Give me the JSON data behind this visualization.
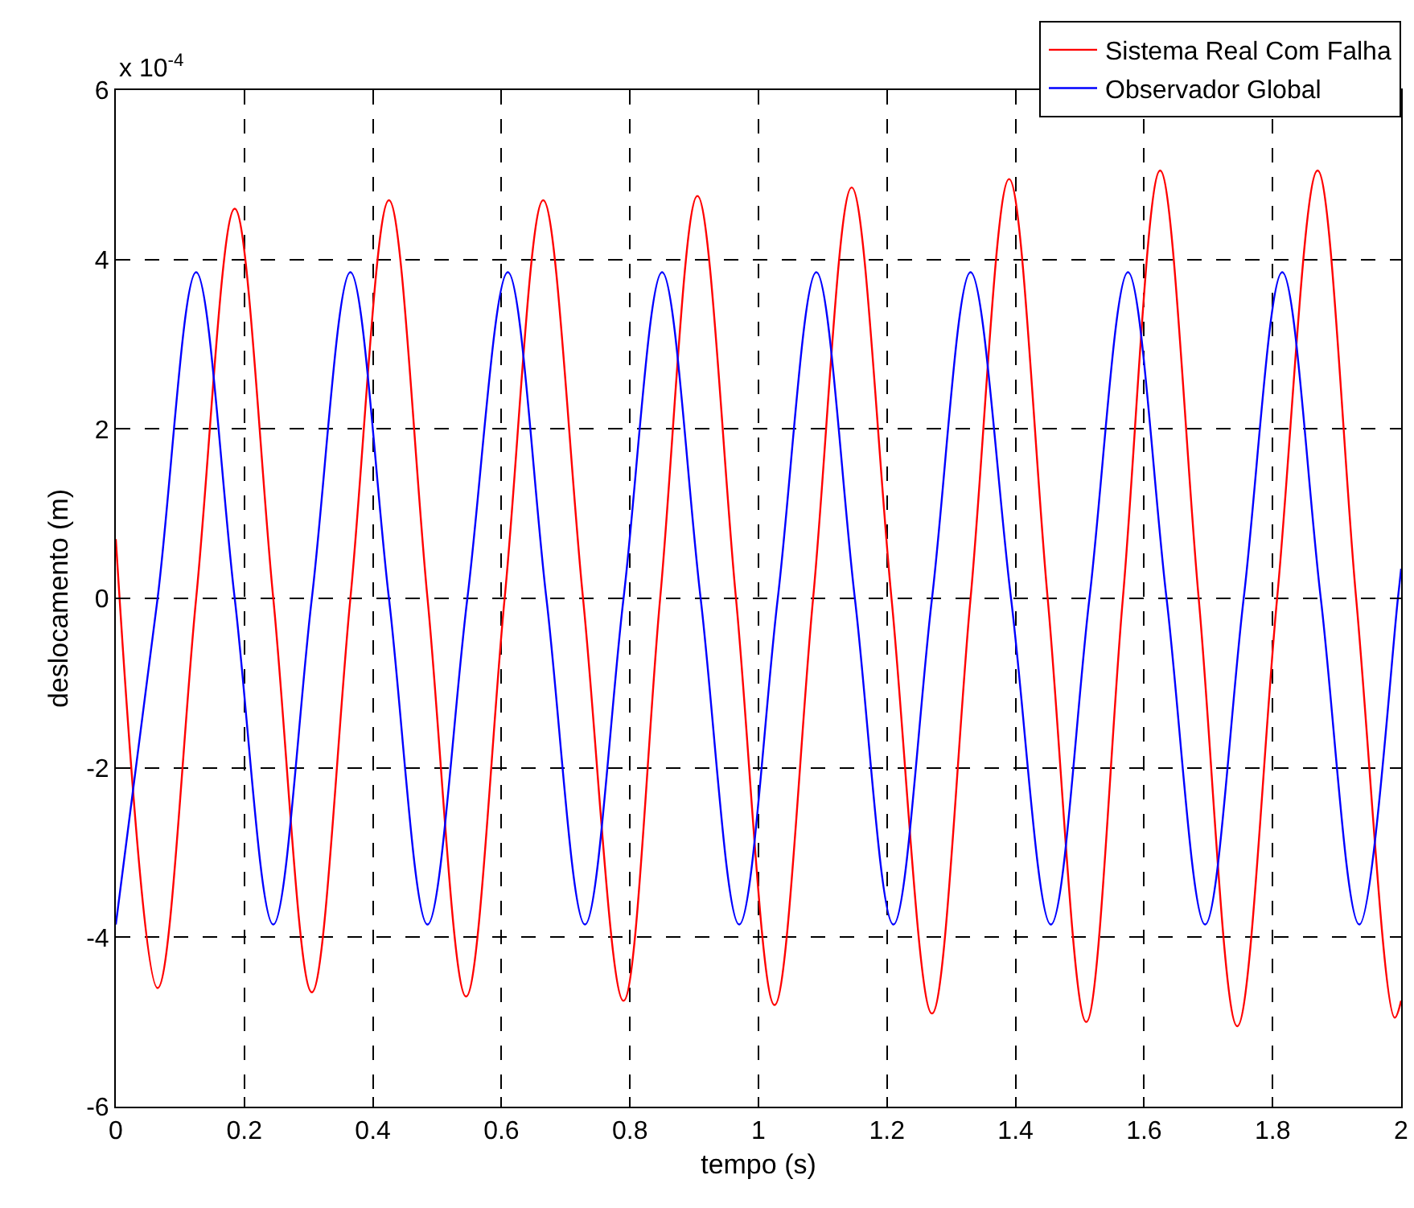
{
  "chart_data": {
    "type": "line",
    "xlabel": "tempo (s)",
    "ylabel": "deslocamento (m)",
    "annotations": [
      "x 10$^{-4}$"
    ],
    "xlim": [
      0,
      2
    ],
    "xticks": [
      0,
      0.2,
      0.4,
      0.6,
      0.8,
      1,
      1.2,
      1.4,
      1.6,
      1.8,
      2
    ],
    "ylim": [
      -6,
      6
    ],
    "yticks": [
      -6,
      -4,
      -2,
      0,
      2,
      4,
      6
    ],
    "grid": true,
    "legend": "top right",
    "marker": "none",
    "line_style": "solid",
    "series": [
      {
        "name": "Sistema Real Com Falha",
        "color": "#ff0000",
        "x": [
          0,
          0.065,
          0.125,
          0.185,
          0.245,
          0.305,
          0.365,
          0.425,
          0.485,
          0.545,
          0.605,
          0.665,
          0.727,
          0.79,
          0.847,
          0.905,
          0.965,
          1.025,
          1.085,
          1.145,
          1.207,
          1.27,
          1.33,
          1.39,
          1.45,
          1.51,
          1.567,
          1.625,
          1.685,
          1.745,
          1.807,
          1.87,
          1.93,
          1.99,
          2
        ],
        "values": [
          0.7,
          -4.6,
          0,
          4.6,
          0,
          -4.65,
          0,
          4.7,
          0,
          -4.7,
          0,
          4.7,
          0,
          -4.75,
          0,
          4.75,
          0,
          -4.8,
          0,
          4.85,
          0,
          -4.9,
          0,
          4.95,
          0,
          -5,
          0,
          5.05,
          0,
          -5.05,
          0,
          5.05,
          0,
          -4.95,
          -4.75
        ]
      },
      {
        "name": "Observador Global",
        "color": "#0000ff",
        "x": [
          0,
          0.065,
          0.125,
          0.185,
          0.245,
          0.305,
          0.365,
          0.425,
          0.485,
          0.547,
          0.61,
          0.67,
          0.73,
          0.79,
          0.85,
          0.91,
          0.97,
          1.03,
          1.09,
          1.15,
          1.21,
          1.27,
          1.33,
          1.393,
          1.455,
          1.515,
          1.575,
          1.635,
          1.695,
          1.755,
          1.815,
          1.875,
          1.935,
          1.995,
          2
        ],
        "values": [
          -3.85,
          0,
          3.85,
          0,
          -3.85,
          0,
          3.85,
          0,
          -3.85,
          0,
          3.85,
          0,
          -3.85,
          0,
          3.85,
          0,
          -3.85,
          0,
          3.85,
          0,
          -3.85,
          0,
          3.85,
          0,
          -3.85,
          0,
          3.85,
          0,
          -3.85,
          0,
          3.85,
          0,
          -3.85,
          0,
          0.35
        ]
      }
    ]
  }
}
